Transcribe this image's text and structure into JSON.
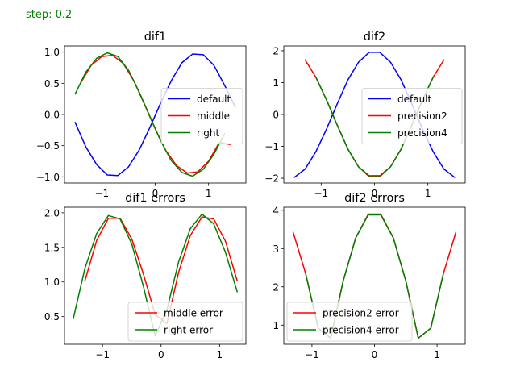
{
  "header": {
    "step_text": "step: 0.2"
  },
  "colors": {
    "blue": "#0000ff",
    "red": "#ff0000",
    "green": "#008000",
    "text": "#008000"
  },
  "chart_data": [
    {
      "type": "line",
      "title": "dif1",
      "xlim": [
        -1.7,
        1.7
      ],
      "ylim": [
        -1.1,
        1.1
      ],
      "xticks": [
        -1,
        0,
        1
      ],
      "xtick_labels": [
        "−1",
        "0",
        "1"
      ],
      "yticks": [
        -1.0,
        -0.5,
        0.0,
        0.5,
        1.0
      ],
      "ytick_labels": [
        "−1.0",
        "−0.5",
        "0.0",
        "0.5",
        "1.0"
      ],
      "legend": "center-right",
      "series": [
        {
          "name": "default",
          "color": "blue",
          "x": [
            -1.5,
            -1.3,
            -1.1,
            -0.9,
            -0.7,
            -0.5,
            -0.3,
            -0.1,
            0.1,
            0.3,
            0.5,
            0.7,
            0.9,
            1.1,
            1.3,
            1.5
          ],
          "y": [
            -0.13,
            -0.52,
            -0.8,
            -0.97,
            -0.98,
            -0.84,
            -0.57,
            -0.21,
            0.18,
            0.54,
            0.83,
            0.97,
            0.96,
            0.79,
            0.47,
            0.12
          ]
        },
        {
          "name": "middle",
          "color": "red",
          "x": [
            -1.4,
            -1.2,
            -1.0,
            -0.8,
            -0.6,
            -0.4,
            -0.2,
            0.0,
            0.2,
            0.4,
            0.6,
            0.8,
            1.0,
            1.2,
            1.4
          ],
          "y": [
            0.5,
            0.79,
            0.93,
            0.95,
            0.82,
            0.54,
            0.16,
            -0.23,
            -0.58,
            -0.82,
            -0.94,
            -0.92,
            -0.75,
            -0.45,
            -0.48
          ]
        },
        {
          "name": "right",
          "color": "green",
          "x": [
            -1.5,
            -1.3,
            -1.1,
            -0.9,
            -0.7,
            -0.5,
            -0.3,
            -0.1,
            0.1,
            0.3,
            0.5,
            0.7,
            0.9,
            1.1,
            1.3
          ],
          "y": [
            0.33,
            0.68,
            0.9,
            0.99,
            0.93,
            0.71,
            0.36,
            -0.03,
            -0.42,
            -0.74,
            -0.93,
            -0.99,
            -0.88,
            -0.64,
            -0.31
          ]
        }
      ]
    },
    {
      "type": "line",
      "title": "dif2",
      "xlim": [
        -1.7,
        1.7
      ],
      "ylim": [
        -2.15,
        2.15
      ],
      "xticks": [
        -1,
        0,
        1
      ],
      "xtick_labels": [
        "−1",
        "0",
        "1"
      ],
      "yticks": [
        -2,
        -1,
        0,
        1,
        2
      ],
      "ytick_labels": [
        "−2",
        "−1",
        "0",
        "1",
        "2"
      ],
      "legend": "center-right",
      "series": [
        {
          "name": "default",
          "color": "blue",
          "x": [
            -1.5,
            -1.3,
            -1.1,
            -0.9,
            -0.7,
            -0.5,
            -0.3,
            -0.1,
            0.1,
            0.3,
            0.5,
            0.7,
            0.9,
            1.1,
            1.3,
            1.5
          ],
          "y": [
            -1.97,
            -1.71,
            -1.17,
            -0.46,
            0.33,
            1.08,
            1.64,
            1.95,
            1.95,
            1.64,
            1.08,
            0.33,
            -0.46,
            -1.17,
            -1.71,
            -1.97
          ]
        },
        {
          "name": "precision2",
          "color": "red",
          "x": [
            -1.3,
            -1.1,
            -0.9,
            -0.7,
            -0.5,
            -0.3,
            -0.1,
            0.1,
            0.3,
            0.5,
            0.7,
            0.9,
            1.1,
            1.3
          ],
          "y": [
            1.71,
            1.17,
            0.46,
            -0.33,
            -1.08,
            -1.64,
            -1.95,
            -1.95,
            -1.64,
            -1.08,
            -0.33,
            0.46,
            1.17,
            1.71
          ]
        },
        {
          "name": "precision4",
          "color": "green",
          "x": [
            -1.1,
            -0.9,
            -0.7,
            -0.5,
            -0.3,
            -0.1,
            0.1,
            0.3,
            0.5,
            0.7,
            0.9,
            1.1
          ],
          "y": [
            1.17,
            0.46,
            -0.33,
            -1.08,
            -1.64,
            -1.92,
            -1.92,
            -1.64,
            -1.08,
            -0.33,
            0.46,
            1.17
          ]
        }
      ]
    },
    {
      "type": "line",
      "title": "dif1 errors",
      "xlim": [
        -1.65,
        1.45
      ],
      "ylim": [
        0.1,
        2.08
      ],
      "xticks": [
        -1,
        0,
        1
      ],
      "xtick_labels": [
        "−1",
        "0",
        "1"
      ],
      "yticks": [
        0.5,
        1.0,
        1.5,
        2.0
      ],
      "ytick_labels": [
        "0.5",
        "1.0",
        "1.5",
        "2.0"
      ],
      "legend": "lower-right",
      "series": [
        {
          "name": "middle error",
          "color": "red",
          "x": [
            -1.3,
            -1.1,
            -0.9,
            -0.7,
            -0.5,
            -0.3,
            -0.1,
            0.1,
            0.3,
            0.5,
            0.7,
            0.9,
            1.1,
            1.3
          ],
          "y": [
            1.02,
            1.6,
            1.92,
            1.92,
            1.62,
            1.11,
            0.53,
            0.4,
            1.14,
            1.67,
            1.94,
            1.91,
            1.59,
            1.02
          ]
        },
        {
          "name": "right error",
          "color": "green",
          "x": [
            -1.5,
            -1.3,
            -1.1,
            -0.9,
            -0.7,
            -0.5,
            -0.3,
            -0.1,
            0.1,
            0.3,
            0.5,
            0.7,
            0.9,
            1.1,
            1.3
          ],
          "y": [
            0.47,
            1.2,
            1.7,
            1.96,
            1.91,
            1.55,
            0.93,
            0.22,
            0.6,
            1.29,
            1.77,
            1.98,
            1.84,
            1.43,
            0.86
          ]
        }
      ]
    },
    {
      "type": "line",
      "title": "dif2 errors",
      "xlim": [
        -1.45,
        1.45
      ],
      "ylim": [
        0.5,
        4.08
      ],
      "xticks": [
        -1,
        0,
        1
      ],
      "xtick_labels": [
        "−1",
        "0",
        "1"
      ],
      "yticks": [
        1,
        2,
        3,
        4
      ],
      "ytick_labels": [
        "1",
        "2",
        "3",
        "4"
      ],
      "legend": "lower-left",
      "series": [
        {
          "name": "precision2 error",
          "color": "red",
          "x": [
            -1.3,
            -1.1,
            -0.9,
            -0.7,
            -0.5,
            -0.3,
            -0.1,
            0.1,
            0.3,
            0.5,
            0.7,
            0.9,
            1.1,
            1.3
          ],
          "y": [
            3.42,
            2.34,
            0.92,
            0.66,
            2.16,
            3.28,
            3.9,
            3.9,
            3.28,
            2.16,
            0.66,
            0.92,
            2.34,
            3.42
          ]
        },
        {
          "name": "precision4 error",
          "color": "green",
          "x": [
            -1.1,
            -0.9,
            -0.7,
            -0.5,
            -0.3,
            -0.1,
            0.1,
            0.3,
            0.5,
            0.7,
            0.9,
            1.1
          ],
          "y": [
            2.34,
            0.92,
            0.66,
            2.16,
            3.28,
            3.88,
            3.88,
            3.28,
            2.16,
            0.66,
            0.92,
            2.34
          ]
        }
      ]
    }
  ]
}
